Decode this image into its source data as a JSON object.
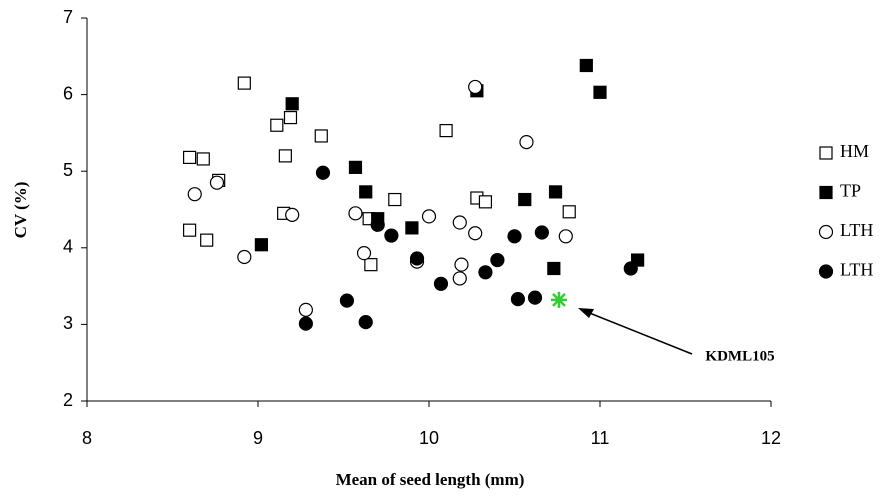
{
  "chart_data": {
    "type": "scatter",
    "xlabel": "Mean of seed length (mm)",
    "ylabel": "CV (%)",
    "xlim": [
      8,
      12
    ],
    "xticks": [
      8,
      9,
      10,
      11,
      12
    ],
    "ylim": [
      2,
      7
    ],
    "yticks": [
      2,
      3,
      4,
      5,
      6,
      7
    ],
    "series": [
      {
        "name": "HM",
        "color": "#000000",
        "marker": "square",
        "filled": false,
        "x": [
          8.6,
          8.92,
          8.6,
          8.68,
          8.7,
          8.77,
          9.11,
          9.19,
          9.16,
          9.15,
          9.37,
          9.65,
          9.8,
          9.66,
          10.1,
          10.28,
          10.33,
          10.82
        ],
        "values": [
          5.18,
          6.15,
          4.23,
          5.16,
          4.1,
          4.88,
          5.6,
          5.7,
          5.2,
          4.45,
          5.46,
          4.38,
          4.63,
          3.78,
          5.53,
          4.65,
          4.6,
          4.47
        ]
      },
      {
        "name": "TP",
        "color": "#000000",
        "marker": "square",
        "filled": true,
        "x": [
          9.2,
          9.02,
          9.57,
          9.63,
          9.7,
          9.9,
          10.28,
          10.56,
          10.74,
          10.73,
          10.92,
          11.0,
          11.22
        ],
        "values": [
          5.88,
          4.04,
          5.05,
          4.73,
          4.38,
          4.26,
          6.05,
          4.63,
          4.73,
          3.73,
          6.38,
          6.03,
          3.84
        ]
      },
      {
        "name": "LTH",
        "color": "#000000",
        "marker": "circle",
        "filled": false,
        "x": [
          8.63,
          8.76,
          8.92,
          9.2,
          9.28,
          9.57,
          9.62,
          9.93,
          10.0,
          10.18,
          10.18,
          10.19,
          10.27,
          10.27,
          10.57,
          10.8
        ],
        "values": [
          4.7,
          4.85,
          3.88,
          4.43,
          3.19,
          4.45,
          3.93,
          3.82,
          4.41,
          4.33,
          3.6,
          3.78,
          4.19,
          6.1,
          5.38,
          4.15
        ]
      },
      {
        "name": "LTH",
        "color": "#000000",
        "marker": "circle",
        "filled": true,
        "x": [
          9.38,
          9.28,
          9.52,
          9.63,
          9.7,
          9.78,
          9.93,
          10.07,
          10.33,
          10.4,
          10.5,
          10.52,
          10.62,
          10.66,
          11.18
        ],
        "values": [
          4.98,
          3.01,
          3.31,
          3.03,
          4.3,
          4.16,
          3.86,
          3.53,
          3.68,
          3.84,
          4.15,
          3.33,
          3.35,
          4.2,
          3.73
        ]
      }
    ],
    "annotations": [
      {
        "text": "KDML105",
        "x": 10.76,
        "y": 3.32,
        "color": "#33cc33"
      }
    ]
  }
}
